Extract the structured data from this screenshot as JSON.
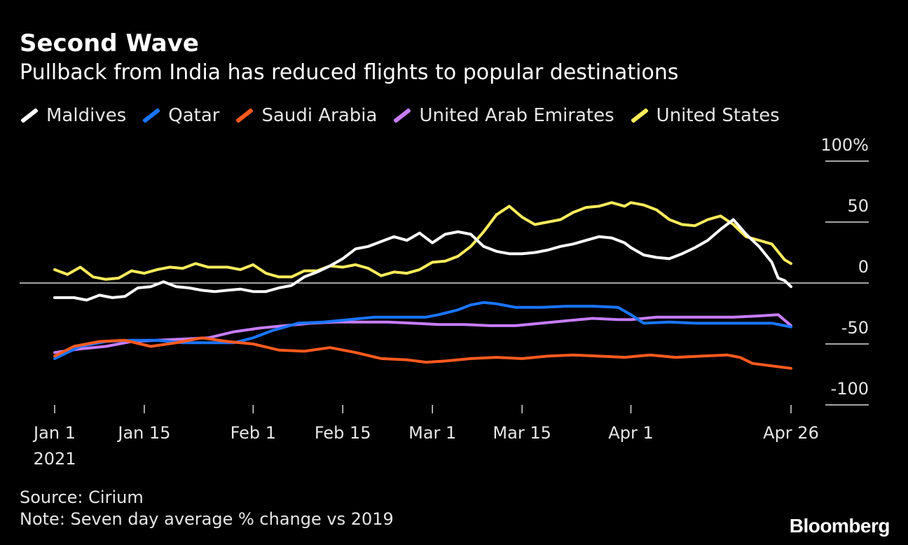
{
  "header": {
    "title": "Second Wave",
    "subtitle": "Pullback from India has reduced flights to popular destinations"
  },
  "footer": {
    "source": "Source: Cirium",
    "note": "Note: Seven day average % change vs 2019",
    "brand": "Bloomberg"
  },
  "chart_data": {
    "type": "line",
    "title": "Second Wave",
    "subtitle": "Pullback from India has reduced flights to popular destinations",
    "x_range": [
      "2021-01-01",
      "2021-04-26"
    ],
    "ylim": [
      -100,
      100
    ],
    "y_ticks": [
      {
        "value": 100,
        "label": "100%"
      },
      {
        "value": 50,
        "label": "50"
      },
      {
        "value": 0,
        "label": "0"
      },
      {
        "value": -50,
        "label": "-50"
      },
      {
        "value": -100,
        "label": "-100"
      }
    ],
    "x_ticks": [
      {
        "date": "2021-01-01",
        "label": "Jan 1",
        "sublabel": "2021"
      },
      {
        "date": "2021-01-15",
        "label": "Jan 15"
      },
      {
        "date": "2021-02-01",
        "label": "Feb 1"
      },
      {
        "date": "2021-02-15",
        "label": "Feb 15"
      },
      {
        "date": "2021-03-01",
        "label": "Mar 1"
      },
      {
        "date": "2021-03-15",
        "label": "Mar 15"
      },
      {
        "date": "2021-04-01",
        "label": "Apr 1"
      },
      {
        "date": "2021-04-26",
        "label": "Apr 26"
      }
    ],
    "grid": false,
    "legend_position": "top",
    "series": [
      {
        "name": "United States",
        "color": "#ffeb5c",
        "points": [
          [
            "2021-01-01",
            11
          ],
          [
            "2021-01-03",
            7
          ],
          [
            "2021-01-05",
            13
          ],
          [
            "2021-01-07",
            5
          ],
          [
            "2021-01-09",
            3
          ],
          [
            "2021-01-11",
            4
          ],
          [
            "2021-01-13",
            10
          ],
          [
            "2021-01-15",
            8
          ],
          [
            "2021-01-17",
            11
          ],
          [
            "2021-01-19",
            13
          ],
          [
            "2021-01-21",
            12
          ],
          [
            "2021-01-23",
            16
          ],
          [
            "2021-01-25",
            13
          ],
          [
            "2021-01-28",
            13
          ],
          [
            "2021-01-30",
            11
          ],
          [
            "2021-02-01",
            15
          ],
          [
            "2021-02-03",
            8
          ],
          [
            "2021-02-05",
            5
          ],
          [
            "2021-02-07",
            5
          ],
          [
            "2021-02-09",
            10
          ],
          [
            "2021-02-11",
            10
          ],
          [
            "2021-02-13",
            14
          ],
          [
            "2021-02-15",
            13
          ],
          [
            "2021-02-17",
            15
          ],
          [
            "2021-02-19",
            12
          ],
          [
            "2021-02-21",
            6
          ],
          [
            "2021-02-23",
            9
          ],
          [
            "2021-02-25",
            8
          ],
          [
            "2021-02-27",
            11
          ],
          [
            "2021-03-01",
            17
          ],
          [
            "2021-03-03",
            18
          ],
          [
            "2021-03-05",
            22
          ],
          [
            "2021-03-07",
            30
          ],
          [
            "2021-03-09",
            42
          ],
          [
            "2021-03-11",
            56
          ],
          [
            "2021-03-13",
            63
          ],
          [
            "2021-03-15",
            54
          ],
          [
            "2021-03-17",
            48
          ],
          [
            "2021-03-19",
            50
          ],
          [
            "2021-03-21",
            52
          ],
          [
            "2021-03-23",
            58
          ],
          [
            "2021-03-25",
            62
          ],
          [
            "2021-03-27",
            63
          ],
          [
            "2021-03-29",
            66
          ],
          [
            "2021-03-31",
            63
          ],
          [
            "2021-04-01",
            66
          ],
          [
            "2021-04-03",
            64
          ],
          [
            "2021-04-05",
            60
          ],
          [
            "2021-04-07",
            52
          ],
          [
            "2021-04-09",
            48
          ],
          [
            "2021-04-11",
            47
          ],
          [
            "2021-04-13",
            52
          ],
          [
            "2021-04-15",
            55
          ],
          [
            "2021-04-17",
            48
          ],
          [
            "2021-04-19",
            38
          ],
          [
            "2021-04-21",
            35
          ],
          [
            "2021-04-23",
            32
          ],
          [
            "2021-04-25",
            19
          ],
          [
            "2021-04-26",
            16
          ]
        ]
      },
      {
        "name": "Maldives",
        "color": "#ffffff",
        "points": [
          [
            "2021-01-01",
            -12
          ],
          [
            "2021-01-04",
            -12
          ],
          [
            "2021-01-06",
            -14
          ],
          [
            "2021-01-08",
            -10
          ],
          [
            "2021-01-10",
            -12
          ],
          [
            "2021-01-12",
            -11
          ],
          [
            "2021-01-14",
            -4
          ],
          [
            "2021-01-16",
            -3
          ],
          [
            "2021-01-18",
            1
          ],
          [
            "2021-01-20",
            -3
          ],
          [
            "2021-01-22",
            -4
          ],
          [
            "2021-01-24",
            -6
          ],
          [
            "2021-01-26",
            -7
          ],
          [
            "2021-01-28",
            -6
          ],
          [
            "2021-01-30",
            -5
          ],
          [
            "2021-02-01",
            -7
          ],
          [
            "2021-02-03",
            -7
          ],
          [
            "2021-02-05",
            -4
          ],
          [
            "2021-02-07",
            -2
          ],
          [
            "2021-02-09",
            5
          ],
          [
            "2021-02-11",
            9
          ],
          [
            "2021-02-13",
            14
          ],
          [
            "2021-02-15",
            20
          ],
          [
            "2021-02-17",
            28
          ],
          [
            "2021-02-19",
            30
          ],
          [
            "2021-02-21",
            34
          ],
          [
            "2021-02-23",
            38
          ],
          [
            "2021-02-25",
            35
          ],
          [
            "2021-02-27",
            41
          ],
          [
            "2021-03-01",
            33
          ],
          [
            "2021-03-03",
            40
          ],
          [
            "2021-03-05",
            42
          ],
          [
            "2021-03-07",
            40
          ],
          [
            "2021-03-09",
            30
          ],
          [
            "2021-03-11",
            26
          ],
          [
            "2021-03-13",
            24
          ],
          [
            "2021-03-15",
            24
          ],
          [
            "2021-03-17",
            25
          ],
          [
            "2021-03-19",
            27
          ],
          [
            "2021-03-21",
            30
          ],
          [
            "2021-03-23",
            32
          ],
          [
            "2021-03-25",
            35
          ],
          [
            "2021-03-27",
            38
          ],
          [
            "2021-03-29",
            37
          ],
          [
            "2021-03-31",
            33
          ],
          [
            "2021-04-01",
            29
          ],
          [
            "2021-04-03",
            23
          ],
          [
            "2021-04-05",
            21
          ],
          [
            "2021-04-07",
            20
          ],
          [
            "2021-04-09",
            24
          ],
          [
            "2021-04-11",
            29
          ],
          [
            "2021-04-13",
            35
          ],
          [
            "2021-04-15",
            44
          ],
          [
            "2021-04-17",
            52
          ],
          [
            "2021-04-19",
            40
          ],
          [
            "2021-04-21",
            30
          ],
          [
            "2021-04-23",
            17
          ],
          [
            "2021-04-24",
            4
          ],
          [
            "2021-04-25",
            2
          ],
          [
            "2021-04-26",
            -3
          ]
        ]
      },
      {
        "name": "United Arab Emirates",
        "color": "#c77dff",
        "points": [
          [
            "2021-01-01",
            -57
          ],
          [
            "2021-01-05",
            -54
          ],
          [
            "2021-01-09",
            -52
          ],
          [
            "2021-01-13",
            -48
          ],
          [
            "2021-01-17",
            -47
          ],
          [
            "2021-01-21",
            -46
          ],
          [
            "2021-01-25",
            -45
          ],
          [
            "2021-01-29",
            -40
          ],
          [
            "2021-02-02",
            -37
          ],
          [
            "2021-02-06",
            -35
          ],
          [
            "2021-02-10",
            -33
          ],
          [
            "2021-02-14",
            -32
          ],
          [
            "2021-02-18",
            -32
          ],
          [
            "2021-02-22",
            -32
          ],
          [
            "2021-02-26",
            -33
          ],
          [
            "2021-03-02",
            -34
          ],
          [
            "2021-03-06",
            -34
          ],
          [
            "2021-03-10",
            -35
          ],
          [
            "2021-03-14",
            -35
          ],
          [
            "2021-03-18",
            -33
          ],
          [
            "2021-03-22",
            -31
          ],
          [
            "2021-03-26",
            -29
          ],
          [
            "2021-03-30",
            -30
          ],
          [
            "2021-04-01",
            -30
          ],
          [
            "2021-04-05",
            -28
          ],
          [
            "2021-04-09",
            -28
          ],
          [
            "2021-04-13",
            -28
          ],
          [
            "2021-04-17",
            -28
          ],
          [
            "2021-04-21",
            -27
          ],
          [
            "2021-04-24",
            -26
          ],
          [
            "2021-04-26",
            -35
          ]
        ]
      },
      {
        "name": "Qatar",
        "color": "#1a75ff",
        "points": [
          [
            "2021-01-01",
            -62
          ],
          [
            "2021-01-05",
            -52
          ],
          [
            "2021-01-09",
            -48
          ],
          [
            "2021-01-13",
            -47
          ],
          [
            "2021-01-17",
            -47
          ],
          [
            "2021-01-21",
            -49
          ],
          [
            "2021-01-25",
            -49
          ],
          [
            "2021-01-29",
            -49
          ],
          [
            "2021-02-01",
            -45
          ],
          [
            "2021-02-04",
            -39
          ],
          [
            "2021-02-08",
            -33
          ],
          [
            "2021-02-12",
            -32
          ],
          [
            "2021-02-16",
            -30
          ],
          [
            "2021-02-20",
            -28
          ],
          [
            "2021-02-24",
            -28
          ],
          [
            "2021-02-28",
            -28
          ],
          [
            "2021-03-02",
            -26
          ],
          [
            "2021-03-05",
            -22
          ],
          [
            "2021-03-07",
            -18
          ],
          [
            "2021-03-09",
            -16
          ],
          [
            "2021-03-11",
            -17
          ],
          [
            "2021-03-14",
            -20
          ],
          [
            "2021-03-18",
            -20
          ],
          [
            "2021-03-22",
            -19
          ],
          [
            "2021-03-26",
            -19
          ],
          [
            "2021-03-30",
            -20
          ],
          [
            "2021-04-01",
            -26
          ],
          [
            "2021-04-03",
            -33
          ],
          [
            "2021-04-07",
            -32
          ],
          [
            "2021-04-11",
            -33
          ],
          [
            "2021-04-15",
            -33
          ],
          [
            "2021-04-19",
            -33
          ],
          [
            "2021-04-23",
            -33
          ],
          [
            "2021-04-26",
            -36
          ]
        ]
      },
      {
        "name": "Saudi Arabia",
        "color": "#ff5a1f",
        "points": [
          [
            "2021-01-01",
            -60
          ],
          [
            "2021-01-04",
            -52
          ],
          [
            "2021-01-08",
            -48
          ],
          [
            "2021-01-12",
            -47
          ],
          [
            "2021-01-16",
            -52
          ],
          [
            "2021-01-20",
            -49
          ],
          [
            "2021-01-24",
            -45
          ],
          [
            "2021-01-28",
            -48
          ],
          [
            "2021-02-01",
            -50
          ],
          [
            "2021-02-05",
            -55
          ],
          [
            "2021-02-09",
            -56
          ],
          [
            "2021-02-13",
            -53
          ],
          [
            "2021-02-17",
            -57
          ],
          [
            "2021-02-21",
            -62
          ],
          [
            "2021-02-25",
            -63
          ],
          [
            "2021-02-28",
            -65
          ],
          [
            "2021-03-03",
            -64
          ],
          [
            "2021-03-07",
            -62
          ],
          [
            "2021-03-11",
            -61
          ],
          [
            "2021-03-15",
            -62
          ],
          [
            "2021-03-19",
            -60
          ],
          [
            "2021-03-23",
            -59
          ],
          [
            "2021-03-27",
            -60
          ],
          [
            "2021-03-31",
            -61
          ],
          [
            "2021-04-04",
            -59
          ],
          [
            "2021-04-08",
            -61
          ],
          [
            "2021-04-12",
            -60
          ],
          [
            "2021-04-16",
            -59
          ],
          [
            "2021-04-18",
            -61
          ],
          [
            "2021-04-20",
            -66
          ],
          [
            "2021-04-23",
            -68
          ],
          [
            "2021-04-26",
            -70
          ]
        ]
      }
    ]
  }
}
